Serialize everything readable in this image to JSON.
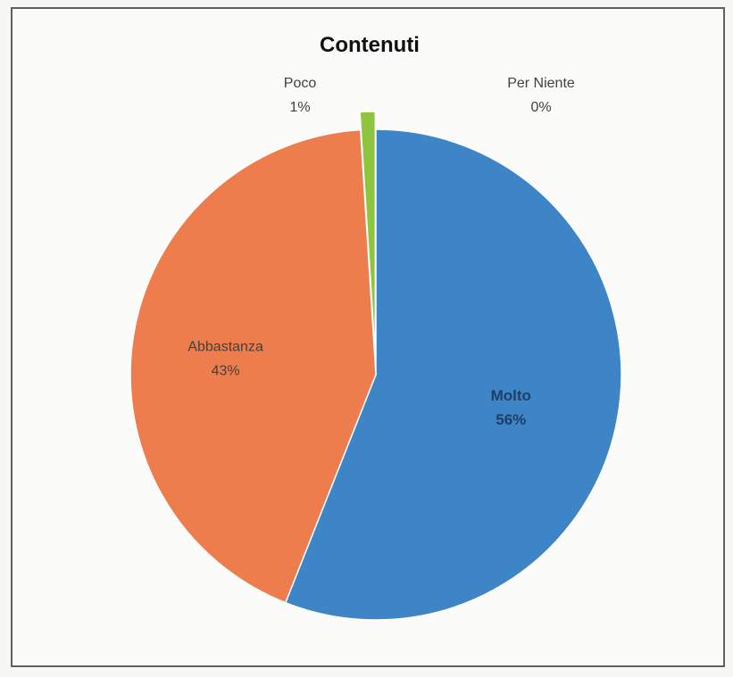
{
  "chart_data": {
    "type": "pie",
    "title": "Contenuti",
    "slices": [
      {
        "label": "Molto",
        "value": 56,
        "value_label": "56%",
        "color": "#3d85c6"
      },
      {
        "label": "Abbastanza",
        "value": 43,
        "value_label": "43%",
        "color": "#ee7d4e"
      },
      {
        "label": "Poco",
        "value": 1,
        "value_label": "1%",
        "color": "#8fc43f"
      },
      {
        "label": "Per Niente",
        "value": 0,
        "value_label": "0%",
        "color": "#f1c232"
      }
    ]
  }
}
